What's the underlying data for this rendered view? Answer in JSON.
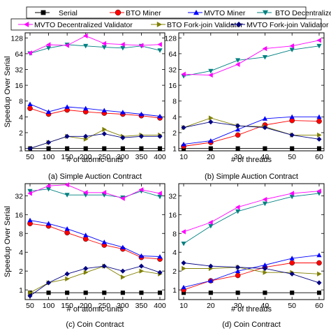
{
  "legend": {
    "placement": "top",
    "entries": [
      {
        "name": "Serial",
        "color": "#000000",
        "marker": "square"
      },
      {
        "name": "BTO Miner",
        "color": "#ff0000",
        "marker": "circle"
      },
      {
        "name": "MVTO Miner",
        "color": "#0000ff",
        "marker": "triangle-up"
      },
      {
        "name": "BTO Decentralized Validator",
        "color": "#008080",
        "marker": "triangle-down"
      },
      {
        "name": "MVTO Decentralized Validator",
        "color": "#ff00ff",
        "marker": "triangle-left"
      },
      {
        "name": "BTO Fork-join Validator",
        "color": "#808000",
        "marker": "triangle-right"
      },
      {
        "name": "MVTO Fork-join Validator",
        "color": "#000080",
        "marker": "diamond"
      }
    ]
  },
  "chart_data": [
    {
      "type": "line",
      "caption": "(a) Simple Auction Contract",
      "xlabel": "# of atomic-units",
      "ylabel": "Speedup Over Serial",
      "yscale": "log2",
      "ylim": [
        0.9,
        160
      ],
      "xlim": [
        50,
        400
      ],
      "x": [
        50,
        100,
        150,
        200,
        250,
        300,
        350,
        400
      ],
      "xticks": [
        50,
        100,
        150,
        200,
        250,
        300,
        350,
        400
      ],
      "yticks": [
        1,
        2,
        4,
        8,
        16,
        32,
        64,
        128
      ],
      "grid": false,
      "series": [
        {
          "name": "Serial",
          "values": [
            1,
            1,
            1,
            1,
            1,
            1,
            1,
            1
          ]
        },
        {
          "name": "BTO Miner",
          "values": [
            5.8,
            4.5,
            5.4,
            5.0,
            4.7,
            4.5,
            4.2,
            3.8
          ]
        },
        {
          "name": "MVTO Miner",
          "values": [
            7.0,
            5.0,
            6.2,
            5.8,
            5.3,
            4.9,
            4.5,
            4.1
          ]
        },
        {
          "name": "BTO Decentralized Validator",
          "values": [
            65,
            82,
            95,
            90,
            85,
            82,
            90,
            74
          ]
        },
        {
          "name": "MVTO Decentralized Validator",
          "values": [
            66,
            95,
            92,
            140,
            100,
            96,
            92,
            96
          ]
        },
        {
          "name": "BTO Fork-join Validator",
          "values": [
            1.0,
            1.3,
            1.7,
            1.5,
            2.3,
            1.7,
            1.8,
            1.8
          ]
        },
        {
          "name": "MVTO Fork-join Validator",
          "values": [
            1.0,
            1.3,
            1.7,
            1.7,
            1.9,
            1.6,
            1.7,
            1.7
          ]
        }
      ]
    },
    {
      "type": "line",
      "caption": "(b) Simple Auction Contract",
      "xlabel": "# of threads",
      "ylabel": "",
      "yscale": "log2",
      "ylim": [
        0.9,
        160
      ],
      "xlim": [
        10,
        60
      ],
      "x": [
        10,
        20,
        30,
        40,
        50,
        60
      ],
      "xticks": [
        10,
        20,
        30,
        40,
        50,
        60
      ],
      "yticks": [
        1,
        2,
        4,
        8,
        16,
        32,
        64,
        128
      ],
      "grid": false,
      "series": [
        {
          "name": "Serial",
          "values": [
            1,
            1,
            1,
            1,
            1,
            1
          ]
        },
        {
          "name": "BTO Miner",
          "values": [
            1.1,
            1.3,
            1.8,
            2.8,
            3.4,
            3.3
          ]
        },
        {
          "name": "MVTO Miner",
          "values": [
            1.2,
            1.4,
            2.3,
            3.7,
            4.0,
            4.0
          ]
        },
        {
          "name": "BTO Decentralized Validator",
          "values": [
            24,
            30,
            48,
            55,
            76,
            90
          ]
        },
        {
          "name": "MVTO Decentralized Validator",
          "values": [
            26,
            25,
            40,
            80,
            90,
            115
          ]
        },
        {
          "name": "BTO Fork-join Validator",
          "values": [
            2.5,
            3.8,
            2.7,
            2.6,
            1.8,
            1.8
          ]
        },
        {
          "name": "MVTO Fork-join Validator",
          "values": [
            2.5,
            3.2,
            2.7,
            2.5,
            1.8,
            1.5
          ]
        }
      ]
    },
    {
      "type": "line",
      "caption": "(c) Coin Contract",
      "xlabel": "# of atomic-units",
      "ylabel": "Speedup Over Serial",
      "yscale": "log2",
      "ylim": [
        0.7,
        50
      ],
      "xlim": [
        50,
        400
      ],
      "x": [
        50,
        100,
        150,
        200,
        250,
        300,
        350,
        400
      ],
      "xticks": [
        50,
        100,
        150,
        200,
        250,
        300,
        350,
        400
      ],
      "yticks": [
        1,
        2,
        4,
        8,
        16,
        32
      ],
      "grid": false,
      "series": [
        {
          "name": "Serial",
          "values": [
            0.9,
            0.9,
            0.9,
            0.9,
            0.9,
            0.9,
            0.9,
            0.9
          ]
        },
        {
          "name": "BTO Miner",
          "values": [
            11.5,
            10.5,
            8.2,
            6.5,
            5.2,
            4.5,
            3.3,
            3.1
          ]
        },
        {
          "name": "MVTO Miner",
          "values": [
            13,
            11.5,
            9.5,
            7.5,
            5.8,
            4.8,
            3.5,
            3.4
          ]
        },
        {
          "name": "BTO Decentralized Validator",
          "values": [
            38,
            41,
            33,
            33,
            33,
            30,
            38,
            31
          ]
        },
        {
          "name": "MVTO Decentralized Validator",
          "values": [
            35,
            46,
            48,
            36,
            36,
            29,
            40,
            35
          ]
        },
        {
          "name": "BTO Fork-join Validator",
          "values": [
            0.9,
            1.3,
            1.5,
            1.9,
            2.4,
            1.6,
            2.0,
            1.8
          ]
        },
        {
          "name": "MVTO Fork-join Validator",
          "values": [
            0.8,
            1.3,
            1.8,
            2.2,
            2.4,
            2.0,
            2.4,
            1.9
          ]
        }
      ]
    },
    {
      "type": "line",
      "caption": "(d) Coin Contract",
      "xlabel": "# of threads",
      "ylabel": "",
      "yscale": "log2",
      "ylim": [
        0.7,
        50
      ],
      "xlim": [
        10,
        60
      ],
      "x": [
        10,
        20,
        30,
        40,
        50,
        60
      ],
      "xticks": [
        10,
        20,
        30,
        40,
        50,
        60
      ],
      "yticks": [
        1,
        2,
        4,
        8,
        16,
        32
      ],
      "grid": false,
      "series": [
        {
          "name": "Serial",
          "values": [
            0.9,
            0.9,
            0.9,
            0.9,
            0.9,
            0.9
          ]
        },
        {
          "name": "BTO Miner",
          "values": [
            1.0,
            1.4,
            1.7,
            2.3,
            2.7,
            2.7
          ]
        },
        {
          "name": "MVTO Miner",
          "values": [
            1.1,
            1.4,
            2.0,
            2.5,
            3.2,
            3.6
          ]
        },
        {
          "name": "BTO Decentralized Validator",
          "values": [
            5.5,
            10.5,
            18,
            24,
            31,
            35
          ]
        },
        {
          "name": "MVTO Decentralized Validator",
          "values": [
            8.5,
            12,
            21,
            28,
            35,
            38
          ]
        },
        {
          "name": "BTO Fork-join Validator",
          "values": [
            2.2,
            2.2,
            2.3,
            1.9,
            1.9,
            1.8
          ]
        },
        {
          "name": "MVTO Fork-join Validator",
          "values": [
            2.7,
            2.4,
            2.3,
            2.2,
            1.8,
            1.3
          ]
        }
      ]
    }
  ]
}
